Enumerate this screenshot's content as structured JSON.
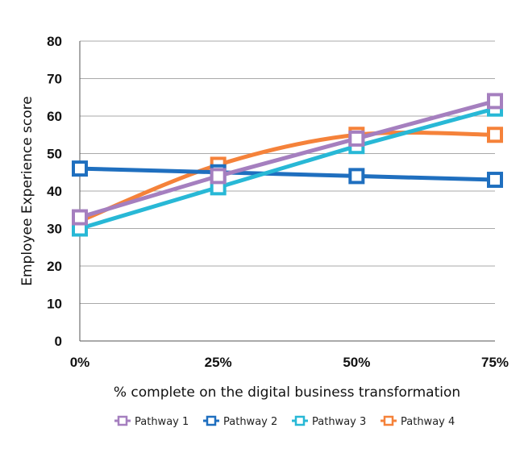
{
  "chart_data": {
    "type": "line",
    "title": "",
    "xlabel": "% complete on the digital business transformation",
    "ylabel": "Employee Experience score",
    "categories": [
      "0%",
      "25%",
      "50%",
      "75%"
    ],
    "ylim": [
      0,
      80
    ],
    "yticks": [
      0,
      10,
      20,
      30,
      40,
      50,
      60,
      70,
      80
    ],
    "grid": true,
    "legend_position": "bottom",
    "series": [
      {
        "name": "Pathway 1",
        "color": "#a57fbf",
        "values": [
          33,
          44,
          54,
          64
        ],
        "smooth": false
      },
      {
        "name": "Pathway 2",
        "color": "#1f6fbf",
        "values": [
          46,
          45,
          44,
          43
        ],
        "smooth": false
      },
      {
        "name": "Pathway 3",
        "color": "#28b8d6",
        "values": [
          30,
          41,
          52,
          62
        ],
        "smooth": false
      },
      {
        "name": "Pathway 4",
        "color": "#f5823a",
        "values": [
          32,
          47,
          55,
          55
        ],
        "smooth": true
      }
    ],
    "draw_order": [
      3,
      1,
      2,
      0
    ]
  }
}
